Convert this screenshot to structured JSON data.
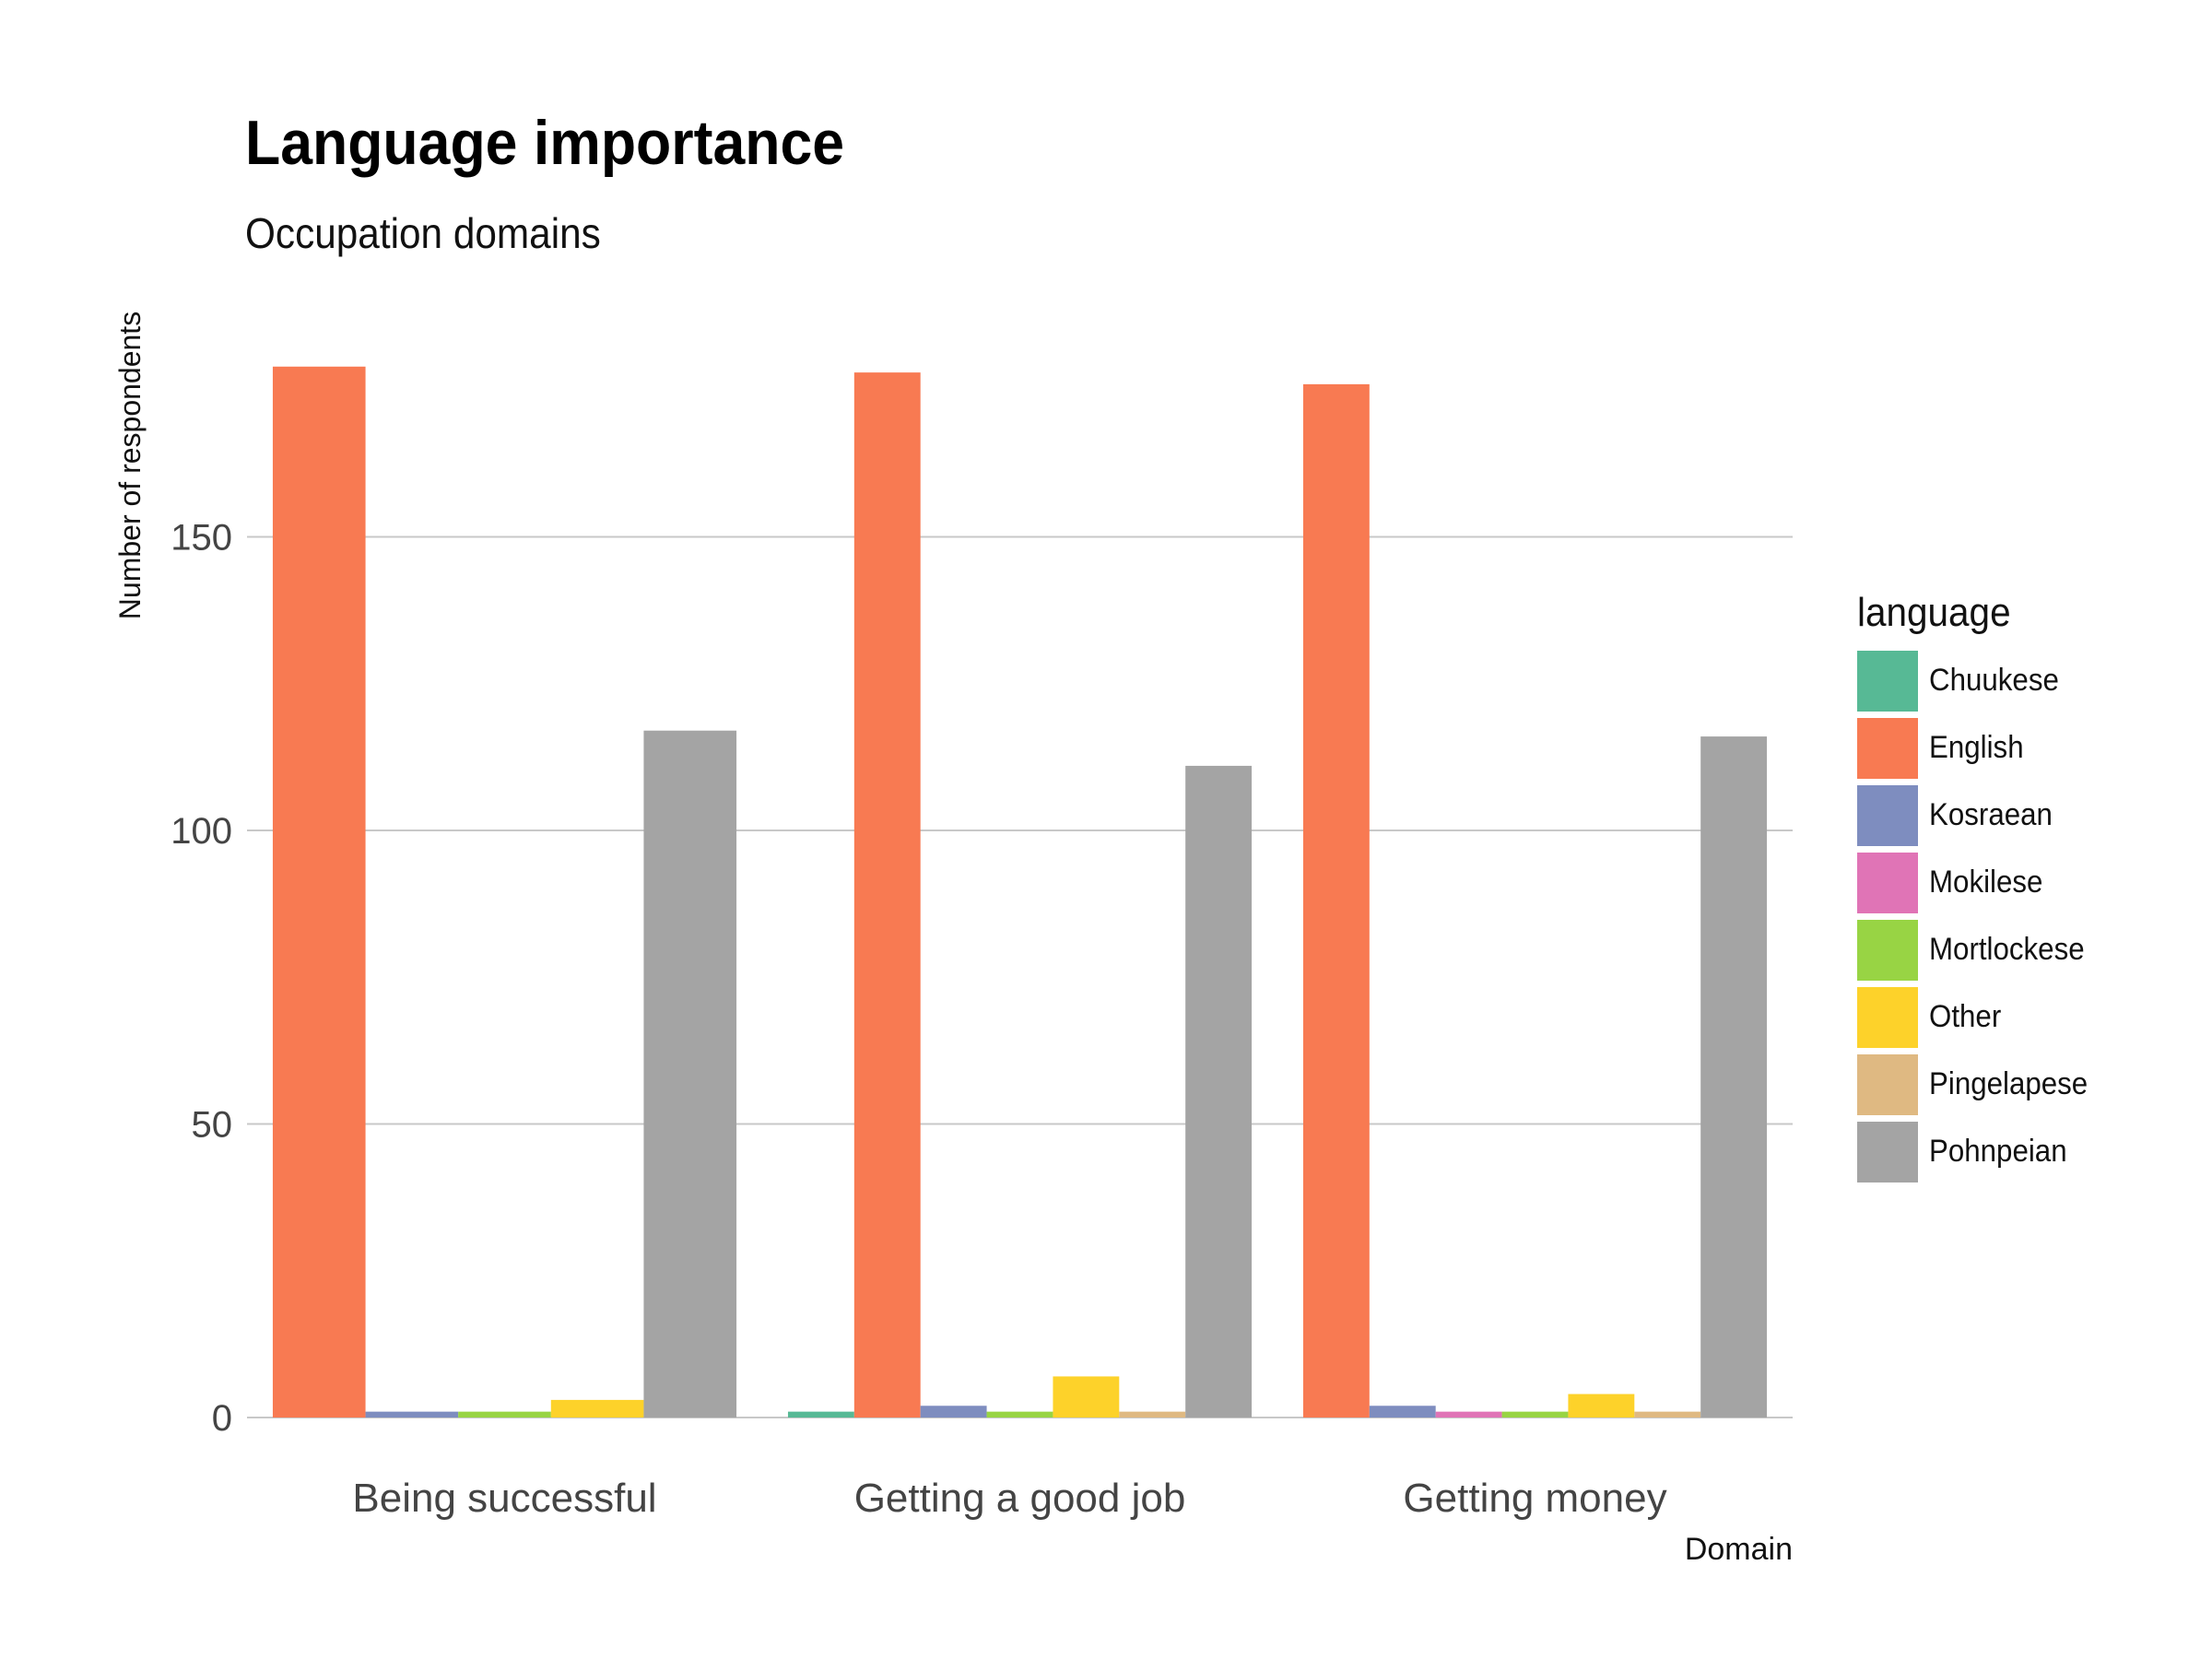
{
  "chart_data": {
    "type": "bar",
    "title": "Language importance",
    "subtitle": "Occupation domains",
    "xlabel": "Domain",
    "ylabel": "Number of respondents",
    "categories": [
      "Being successful",
      "Getting a good job",
      "Getting money"
    ],
    "yticks": [
      0,
      50,
      100,
      150
    ],
    "ylim": [
      0,
      185
    ],
    "grid": "horizontal",
    "legend": {
      "title": "language",
      "placement": "right"
    },
    "series": [
      {
        "name": "Chuukese",
        "color": "#57b995",
        "values": [
          null,
          1,
          null
        ]
      },
      {
        "name": "English",
        "color": "#f87a52",
        "values": [
          179,
          178,
          176
        ]
      },
      {
        "name": "Kosraean",
        "color": "#7e8dbf",
        "values": [
          1,
          2,
          2
        ]
      },
      {
        "name": "Mokilese",
        "color": "#e074b6",
        "values": [
          null,
          null,
          1
        ]
      },
      {
        "name": "Mortlockese",
        "color": "#98d444",
        "values": [
          1,
          1,
          1
        ]
      },
      {
        "name": "Other",
        "color": "#fdd22a",
        "values": [
          3,
          7,
          4
        ]
      },
      {
        "name": "Pingelapese",
        "color": "#dfb982",
        "values": [
          null,
          1,
          1
        ]
      },
      {
        "name": "Pohnpeian",
        "color": "#a4a4a4",
        "values": [
          117,
          111,
          116
        ]
      }
    ]
  }
}
